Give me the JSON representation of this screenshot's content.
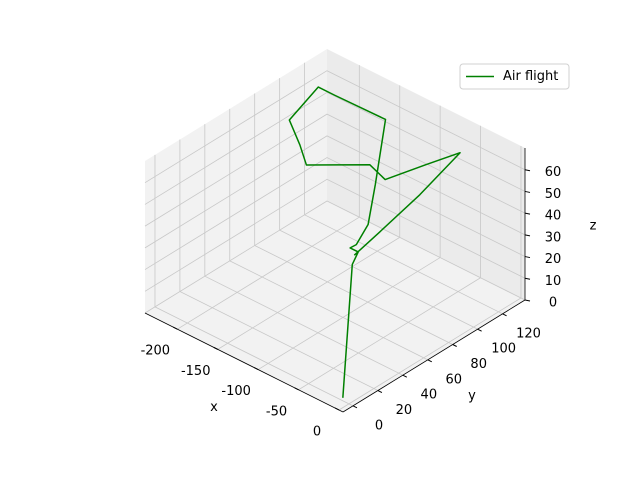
{
  "chart_data": {
    "type": "line3d",
    "series": [
      {
        "name": "Air flight",
        "color": "#008000",
        "x": [
          -6,
          -56,
          -61,
          -71,
          -68,
          -75,
          -100,
          -146,
          -203,
          -223,
          -211,
          -181,
          -159,
          -116,
          -94,
          -78,
          -63,
          -68,
          -78,
          -89
        ],
        "y": [
          -1,
          39,
          47,
          47,
          50,
          64,
          86,
          124,
          120,
          120,
          89,
          78,
          69,
          92,
          90,
          112,
          130,
          101,
          75,
          62
        ],
        "z": [
          2,
          40,
          42,
          42,
          43,
          46,
          52,
          60,
          62,
          62,
          60,
          58,
          56,
          56,
          54,
          56,
          58,
          48,
          38,
          30
        ]
      }
    ],
    "xlabel": "x",
    "ylabel": "y",
    "zlabel": "z",
    "xlim": [
      -240,
      5
    ],
    "ylim": [
      -8,
      138
    ],
    "zlim": [
      0,
      70
    ],
    "xticks": [
      -200,
      -150,
      -100,
      -50,
      0
    ],
    "yticks": [
      0,
      20,
      40,
      60,
      80,
      100,
      120
    ],
    "zticks": [
      0,
      10,
      20,
      30,
      40,
      50,
      60
    ],
    "grid": true,
    "legend": "upper right"
  }
}
